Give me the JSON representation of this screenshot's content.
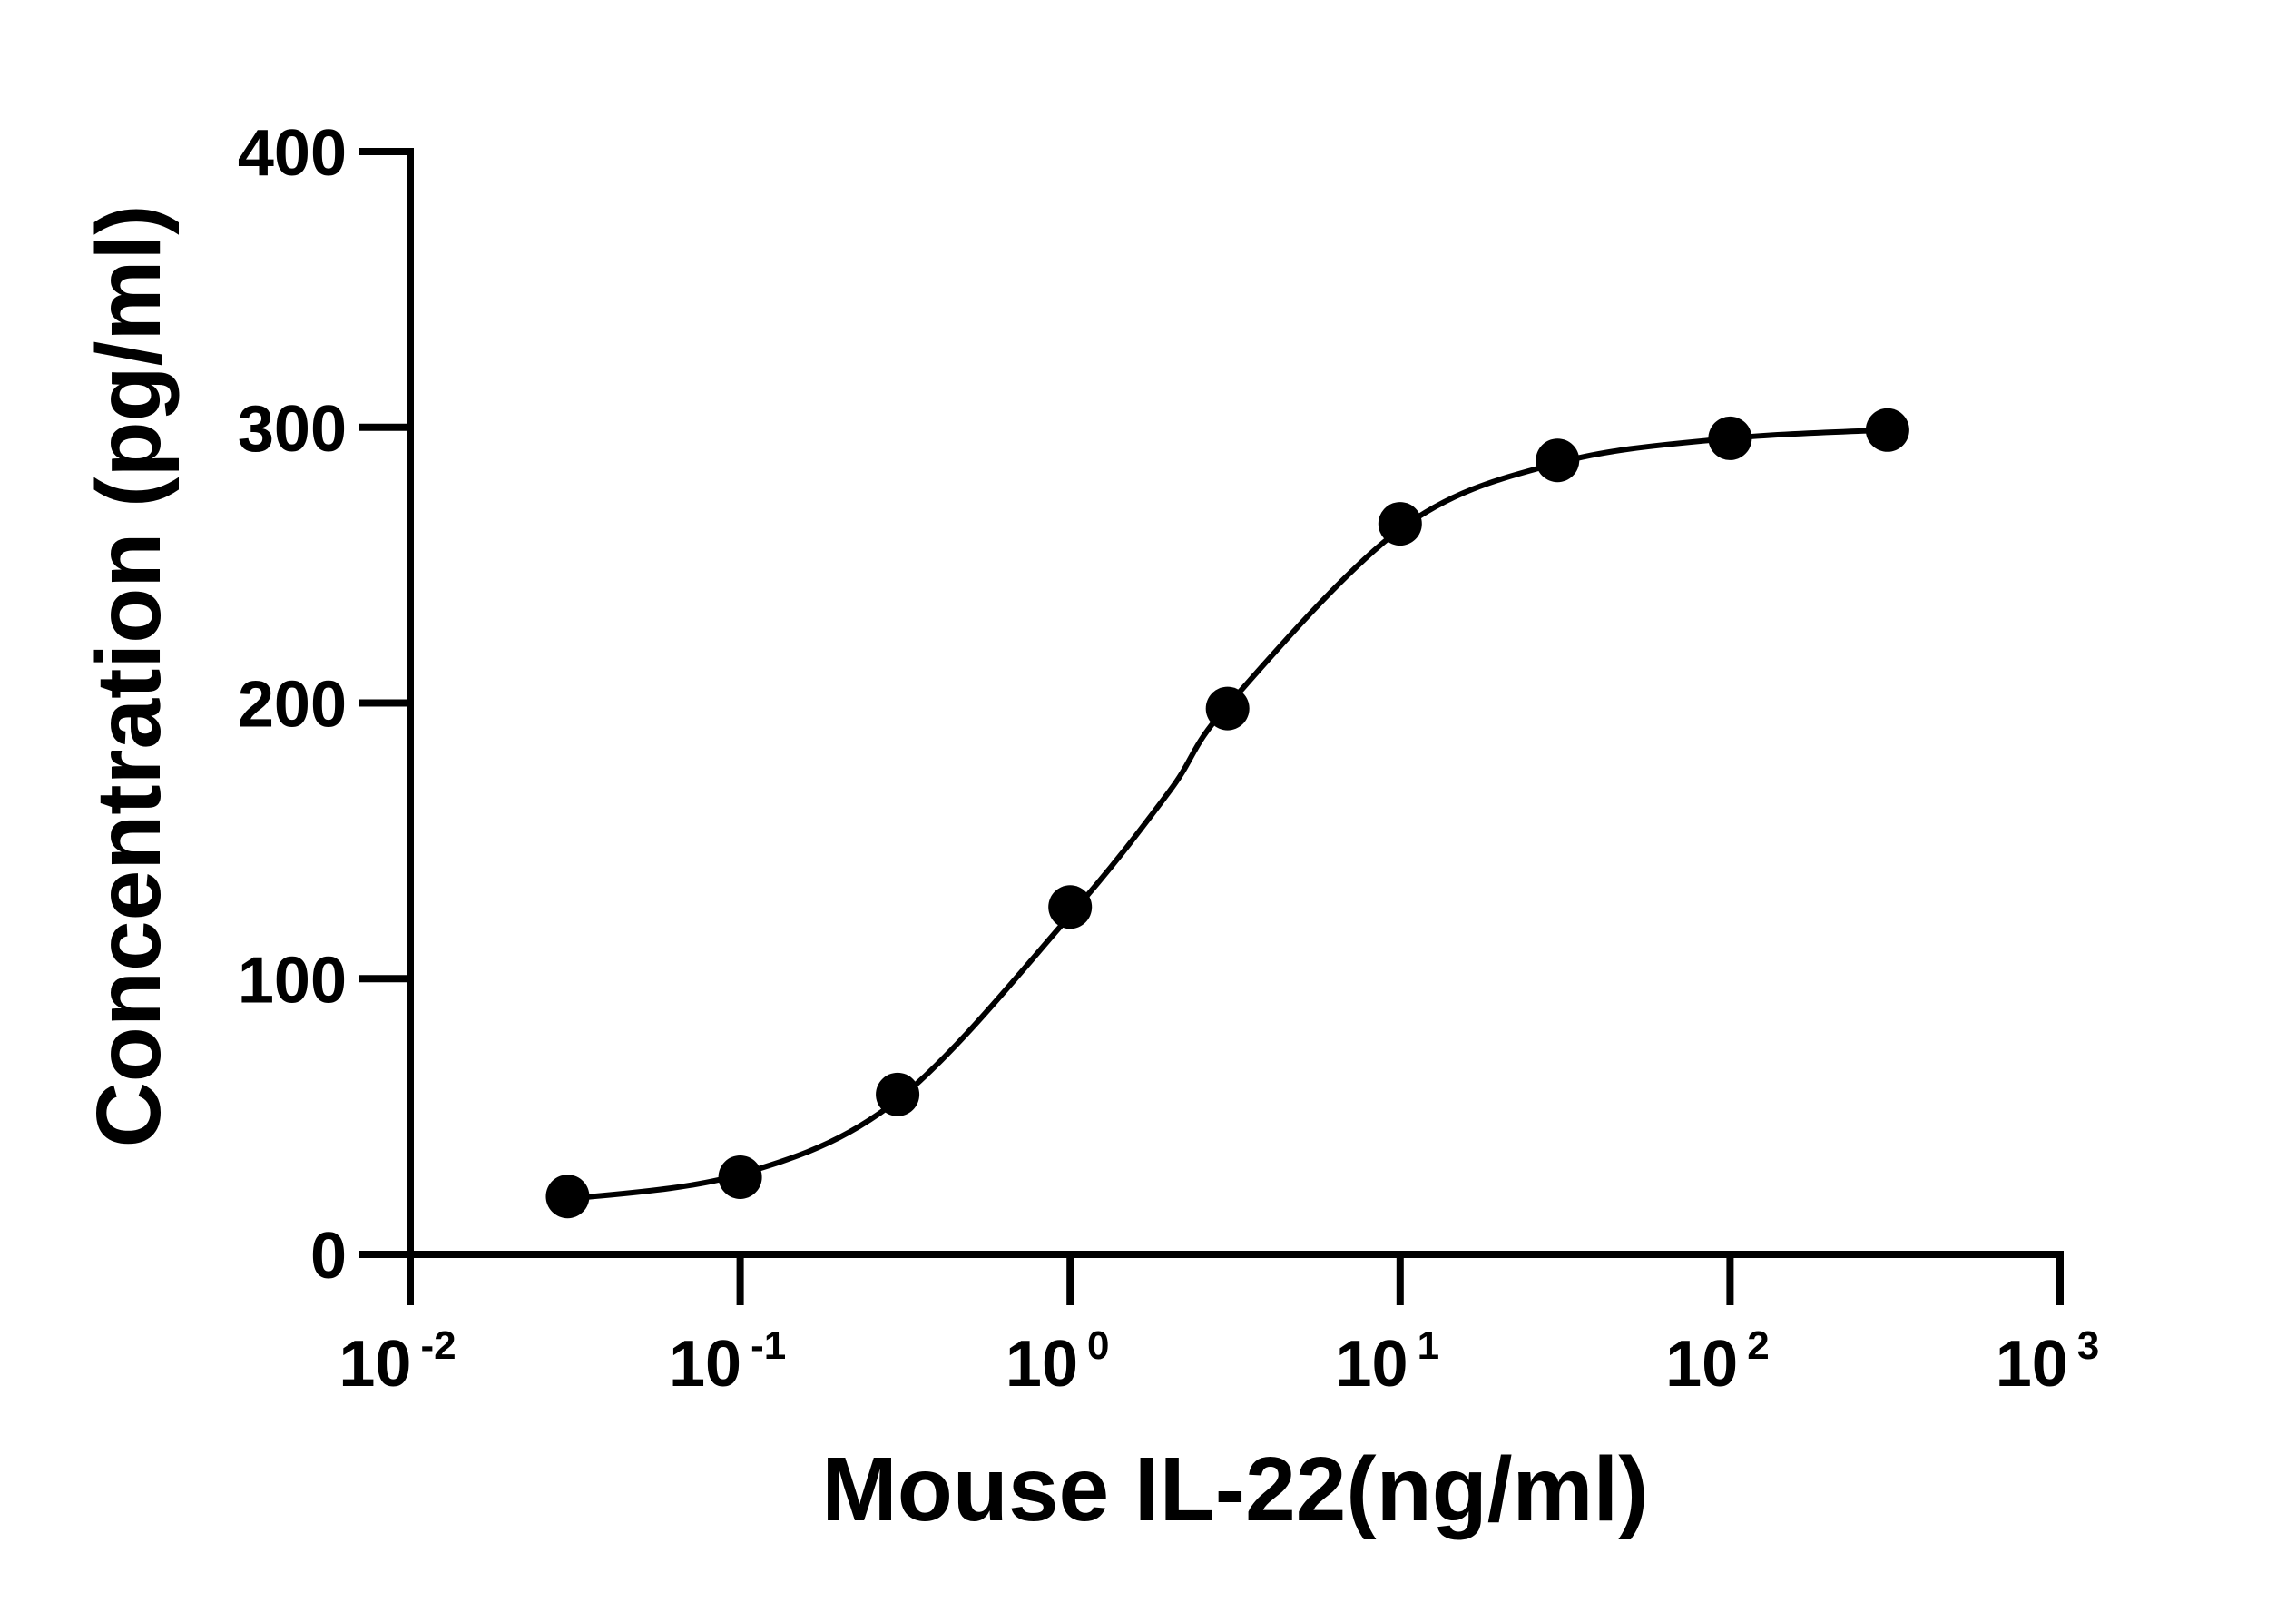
{
  "chart_data": {
    "type": "scatter",
    "xlabel": "Mouse IL-22(ng/ml)",
    "ylabel": "Concentration (pg/ml)",
    "x_scale": "log",
    "xlim": [
      0.01,
      1000
    ],
    "ylim": [
      0,
      400
    ],
    "x_ticks": [
      {
        "value": 0.01,
        "base": "10",
        "exp": "-2"
      },
      {
        "value": 0.1,
        "base": "10",
        "exp": "-1"
      },
      {
        "value": 1,
        "base": "10",
        "exp": "0"
      },
      {
        "value": 10,
        "base": "10",
        "exp": "1"
      },
      {
        "value": 100,
        "base": "10",
        "exp": "2"
      },
      {
        "value": 1000,
        "base": "10",
        "exp": "3"
      }
    ],
    "y_ticks": [
      {
        "value": 0,
        "label": "0"
      },
      {
        "value": 100,
        "label": "100"
      },
      {
        "value": 200,
        "label": "200"
      },
      {
        "value": 300,
        "label": "300"
      },
      {
        "value": 400,
        "label": "400"
      }
    ],
    "grid": false,
    "series": [
      {
        "x": [
          0.03,
          0.1,
          0.3,
          1,
          3,
          10,
          30,
          100,
          300
        ],
        "y": [
          21,
          28,
          58,
          126,
          198,
          265,
          288,
          296,
          299
        ]
      }
    ],
    "fit": {
      "type": "4PL sigmoid",
      "points": [
        [
          0.03,
          20
        ],
        [
          0.1,
          29
        ],
        [
          0.3,
          56
        ],
        [
          1,
          123
        ],
        [
          2,
          168
        ],
        [
          3,
          199
        ],
        [
          10,
          263
        ],
        [
          30,
          287
        ],
        [
          100,
          296
        ],
        [
          300,
          299
        ]
      ]
    },
    "colors": {
      "axes": "#000000",
      "points": "#000000",
      "curve": "#000000",
      "background": "#ffffff"
    }
  }
}
